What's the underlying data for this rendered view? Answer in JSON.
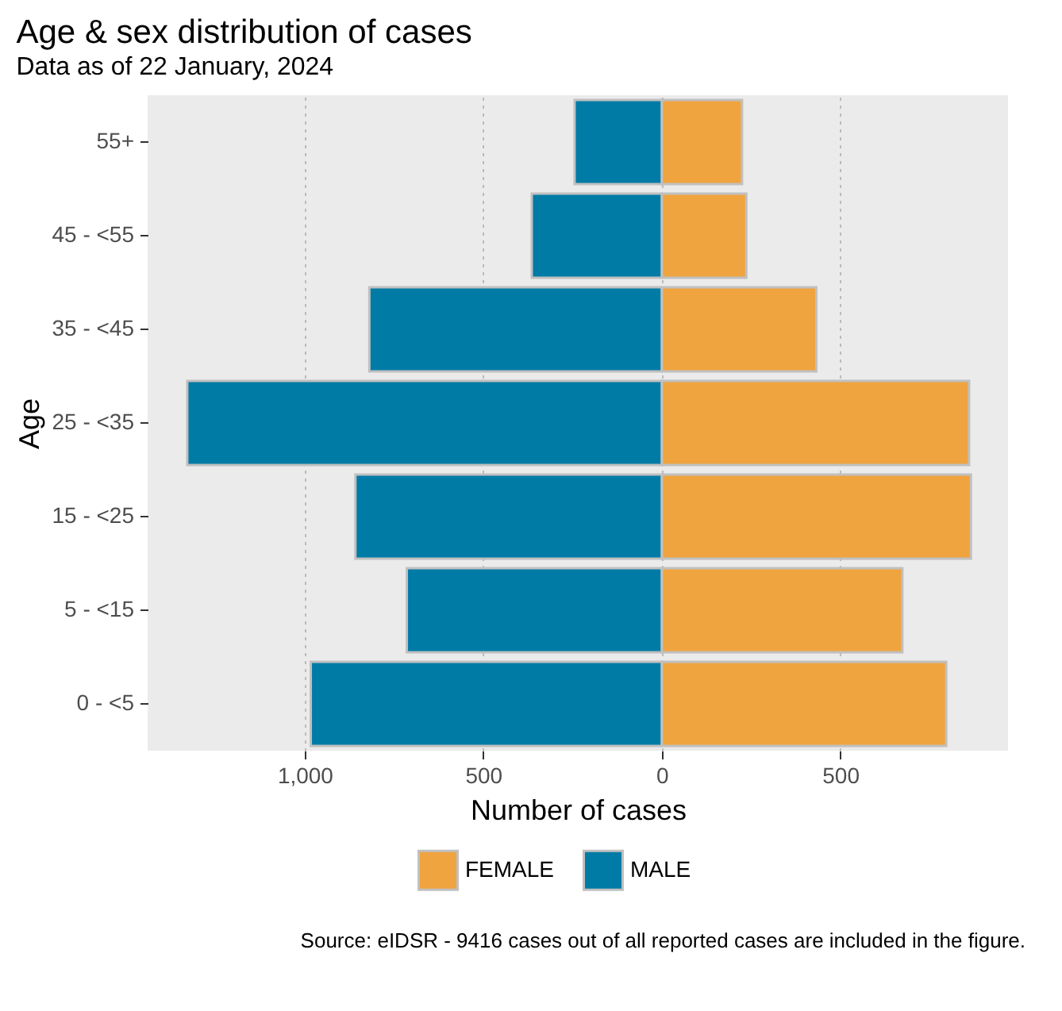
{
  "chart_data": {
    "type": "bar",
    "orientation": "horizontal",
    "title": "Age & sex distribution of cases",
    "subtitle": "Data as of 22 January, 2024",
    "xlabel": "Number of cases",
    "ylabel": "Age",
    "categories": [
      "55+",
      "45 - <55",
      "35 - <45",
      "25 - <35",
      "15 - <25",
      "5 - <15",
      "0 - <5"
    ],
    "series": [
      {
        "name": "FEMALE",
        "color": "#f0a43f",
        "values": [
          225,
          237,
          433,
          861,
          866,
          674,
          797
        ]
      },
      {
        "name": "MALE",
        "color": "#007ba6",
        "values": [
          -244,
          -364,
          -819,
          -1329,
          -858,
          -714,
          -983
        ]
      }
    ],
    "xlim": [
      -1440,
      970
    ],
    "xticks": [
      {
        "value": -1000,
        "label": "1,000"
      },
      {
        "value": -500,
        "label": "500"
      },
      0,
      500
    ],
    "grid": "x",
    "legend": "bottom",
    "stacked": true,
    "annotations": [
      "Source: eIDSR - 9416 cases out of all reported cases are included in the figure."
    ]
  }
}
